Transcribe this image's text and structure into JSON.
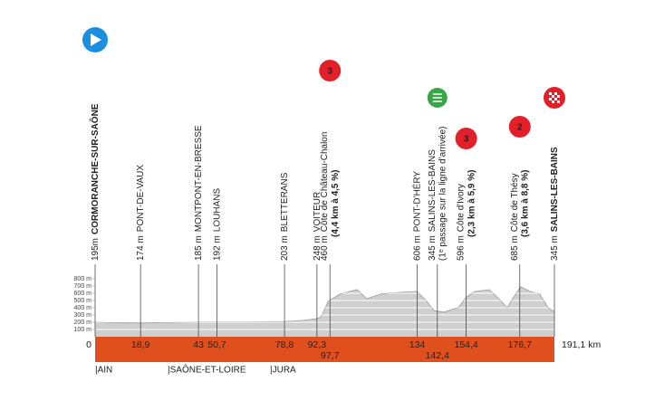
{
  "chart_data": {
    "type": "area",
    "color": "#cfcfcf",
    "bar_color": "#e0501e",
    "xlim": [
      0,
      191.1
    ],
    "ylim": [
      0,
      800
    ],
    "yticks": [
      {
        "value": 100,
        "label": "100 m"
      },
      {
        "value": 200,
        "label": "200 m"
      },
      {
        "value": 300,
        "label": "300 m"
      },
      {
        "value": 400,
        "label": "400 m"
      },
      {
        "value": 500,
        "label": "500 m"
      },
      {
        "value": 600,
        "label": "600 m"
      },
      {
        "value": 700,
        "label": "700 m"
      },
      {
        "value": 800,
        "label": "800 m"
      }
    ],
    "grid": true,
    "x": [
      0,
      5,
      18.9,
      30,
      43,
      50.7,
      60,
      78.8,
      85,
      92.3,
      94,
      97,
      102,
      109,
      113,
      119,
      126,
      134,
      138,
      141,
      145,
      151,
      154.5,
      158,
      164,
      168,
      171.5,
      173,
      177,
      181,
      185,
      188.5,
      191.1
    ],
    "values": [
      200,
      195,
      190,
      195,
      200,
      200,
      205,
      210,
      220,
      250,
      275,
      490,
      590,
      650,
      525,
      590,
      610,
      625,
      490,
      360,
      340,
      400,
      550,
      625,
      650,
      525,
      400,
      490,
      690,
      625,
      590,
      400,
      345
    ],
    "waypoints": [
      {
        "km": 0,
        "altitude": "195m",
        "name": "CORMORANCHE-SUR-SAÔNE",
        "icon": "start"
      },
      {
        "km": {
          "value": 18.9,
          "label": "18,9"
        },
        "altitude": "174 m",
        "name": "PONT-DE-VAUX"
      },
      {
        "km": 43,
        "altitude": "185 m",
        "name": "MONTPONT-EN-BRESSE"
      },
      {
        "km": {
          "value": 50.7,
          "label": "50,7"
        },
        "altitude": "192 m",
        "name": "LOUHANS"
      },
      {
        "km": {
          "value": 78.8,
          "label": "78,8"
        },
        "altitude": "203 m",
        "name": "BLETTERANS"
      },
      {
        "km": {
          "value": 92.3,
          "label": "92,3"
        },
        "altitude": "248 m",
        "name": "VOITEUR"
      },
      {
        "km": {
          "value": 97.7,
          "label": "97,7"
        },
        "altitude": "460 m",
        "name": "Côte de Château-Chalon",
        "detail": "(4,4 km à 4,5 %)",
        "category": "3"
      },
      {
        "km": 134,
        "altitude": "606 m",
        "name": "PONT-D'HÉRY"
      },
      {
        "km": {
          "value": 142.4,
          "label": "142,4"
        },
        "altitude": "345 m",
        "name": "SALINS-LES-BAINS",
        "detail": "(1ᵉ passage sur la ligne d'arrivée)",
        "icon": "sprint"
      },
      {
        "km": {
          "value": 154.4,
          "label": "154,4"
        },
        "altitude": "596 m",
        "name": "Côte d'Ivory",
        "detail": "(2,3 km à 5,9 %)",
        "category": "3"
      },
      {
        "km": {
          "value": 176.7,
          "label": "176,7"
        },
        "altitude": "685 m",
        "name": "Côte de Thésy",
        "detail": "(3,6 km à 8,8 %)",
        "category": "2"
      },
      {
        "km": {
          "value": 191.1,
          "label": "191,1 km"
        },
        "altitude": "345 m",
        "name": "SALINS-LES-BAINS",
        "icon": "finish"
      }
    ],
    "regions": [
      "|AIN",
      "|SAÔNE-ET-LOIRE",
      "|JURA"
    ]
  }
}
